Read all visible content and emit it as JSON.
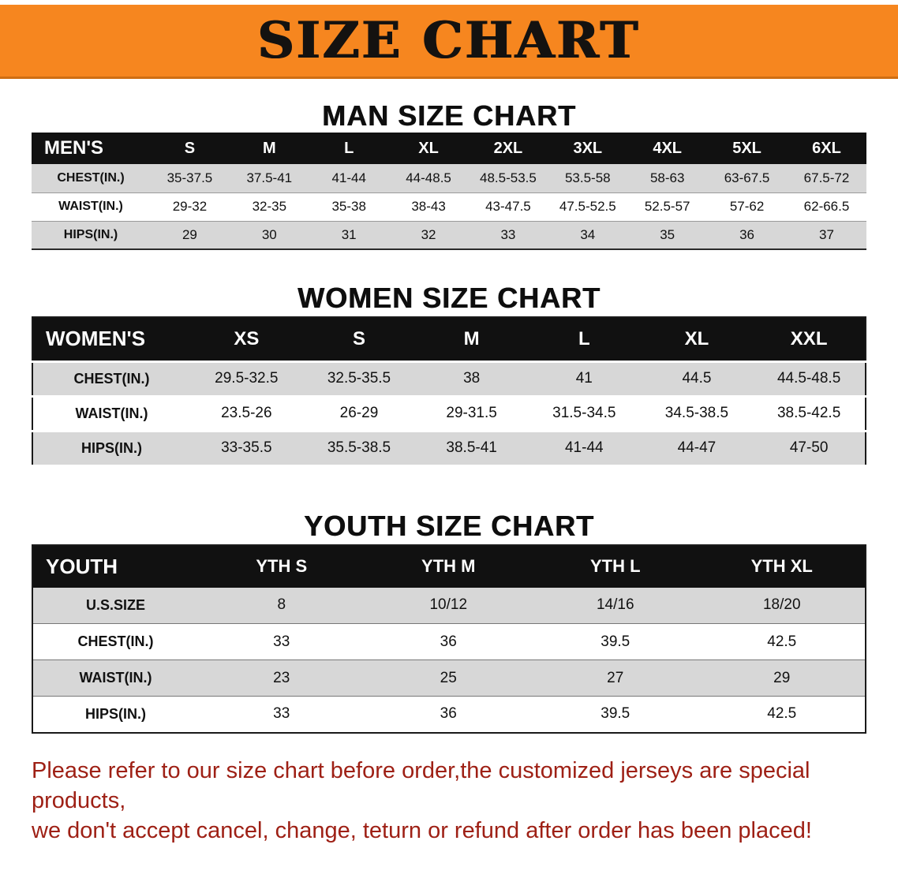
{
  "banner": {
    "title": "SIZE CHART"
  },
  "sections": [
    {
      "heading": "MAN SIZE CHART",
      "table": {
        "header": [
          "MEN'S",
          "S",
          "M",
          "L",
          "XL",
          "2XL",
          "3XL",
          "4XL",
          "5XL",
          "6XL"
        ],
        "rows": [
          [
            "CHEST(IN.)",
            "35-37.5",
            "37.5-41",
            "41-44",
            "44-48.5",
            "48.5-53.5",
            "53.5-58",
            "58-63",
            "63-67.5",
            "67.5-72"
          ],
          [
            "WAIST(IN.)",
            "29-32",
            "32-35",
            "35-38",
            "38-43",
            "43-47.5",
            "47.5-52.5",
            "52.5-57",
            "57-62",
            "62-66.5"
          ],
          [
            "HIPS(IN.)",
            "29",
            "30",
            "31",
            "32",
            "33",
            "34",
            "35",
            "36",
            "37"
          ]
        ]
      }
    },
    {
      "heading": "WOMEN SIZE CHART",
      "table": {
        "header": [
          "WOMEN'S",
          "XS",
          "S",
          "M",
          "L",
          "XL",
          "XXL"
        ],
        "rows": [
          [
            "CHEST(IN.)",
            "29.5-32.5",
            "32.5-35.5",
            "38",
            "41",
            "44.5",
            "44.5-48.5"
          ],
          [
            "WAIST(IN.)",
            "23.5-26",
            "26-29",
            "29-31.5",
            "31.5-34.5",
            "34.5-38.5",
            "38.5-42.5"
          ],
          [
            "HIPS(IN.)",
            "33-35.5",
            "35.5-38.5",
            "38.5-41",
            "41-44",
            "44-47",
            "47-50"
          ]
        ]
      }
    },
    {
      "heading": "YOUTH SIZE CHART",
      "table": {
        "header": [
          "YOUTH",
          "YTH S",
          "YTH M",
          "YTH L",
          "YTH XL"
        ],
        "rows": [
          [
            "U.S.SIZE",
            "8",
            "10/12",
            "14/16",
            "18/20"
          ],
          [
            "CHEST(IN.)",
            "33",
            "36",
            "39.5",
            "42.5"
          ],
          [
            "WAIST(IN.)",
            "23",
            "25",
            "27",
            "29"
          ],
          [
            "HIPS(IN.)",
            "33",
            "36",
            "39.5",
            "42.5"
          ]
        ]
      }
    }
  ],
  "footer": {
    "line1": "Please refer to our size chart before order,the customized jerseys are special products,",
    "line2": "we don't accept cancel, change, teturn or refund after order has been placed!"
  },
  "colors": {
    "banner_bg": "#F6861F",
    "table_header_bg": "#111111",
    "row_alt_bg": "#D7D7D7",
    "footer_text": "#9E2015"
  }
}
